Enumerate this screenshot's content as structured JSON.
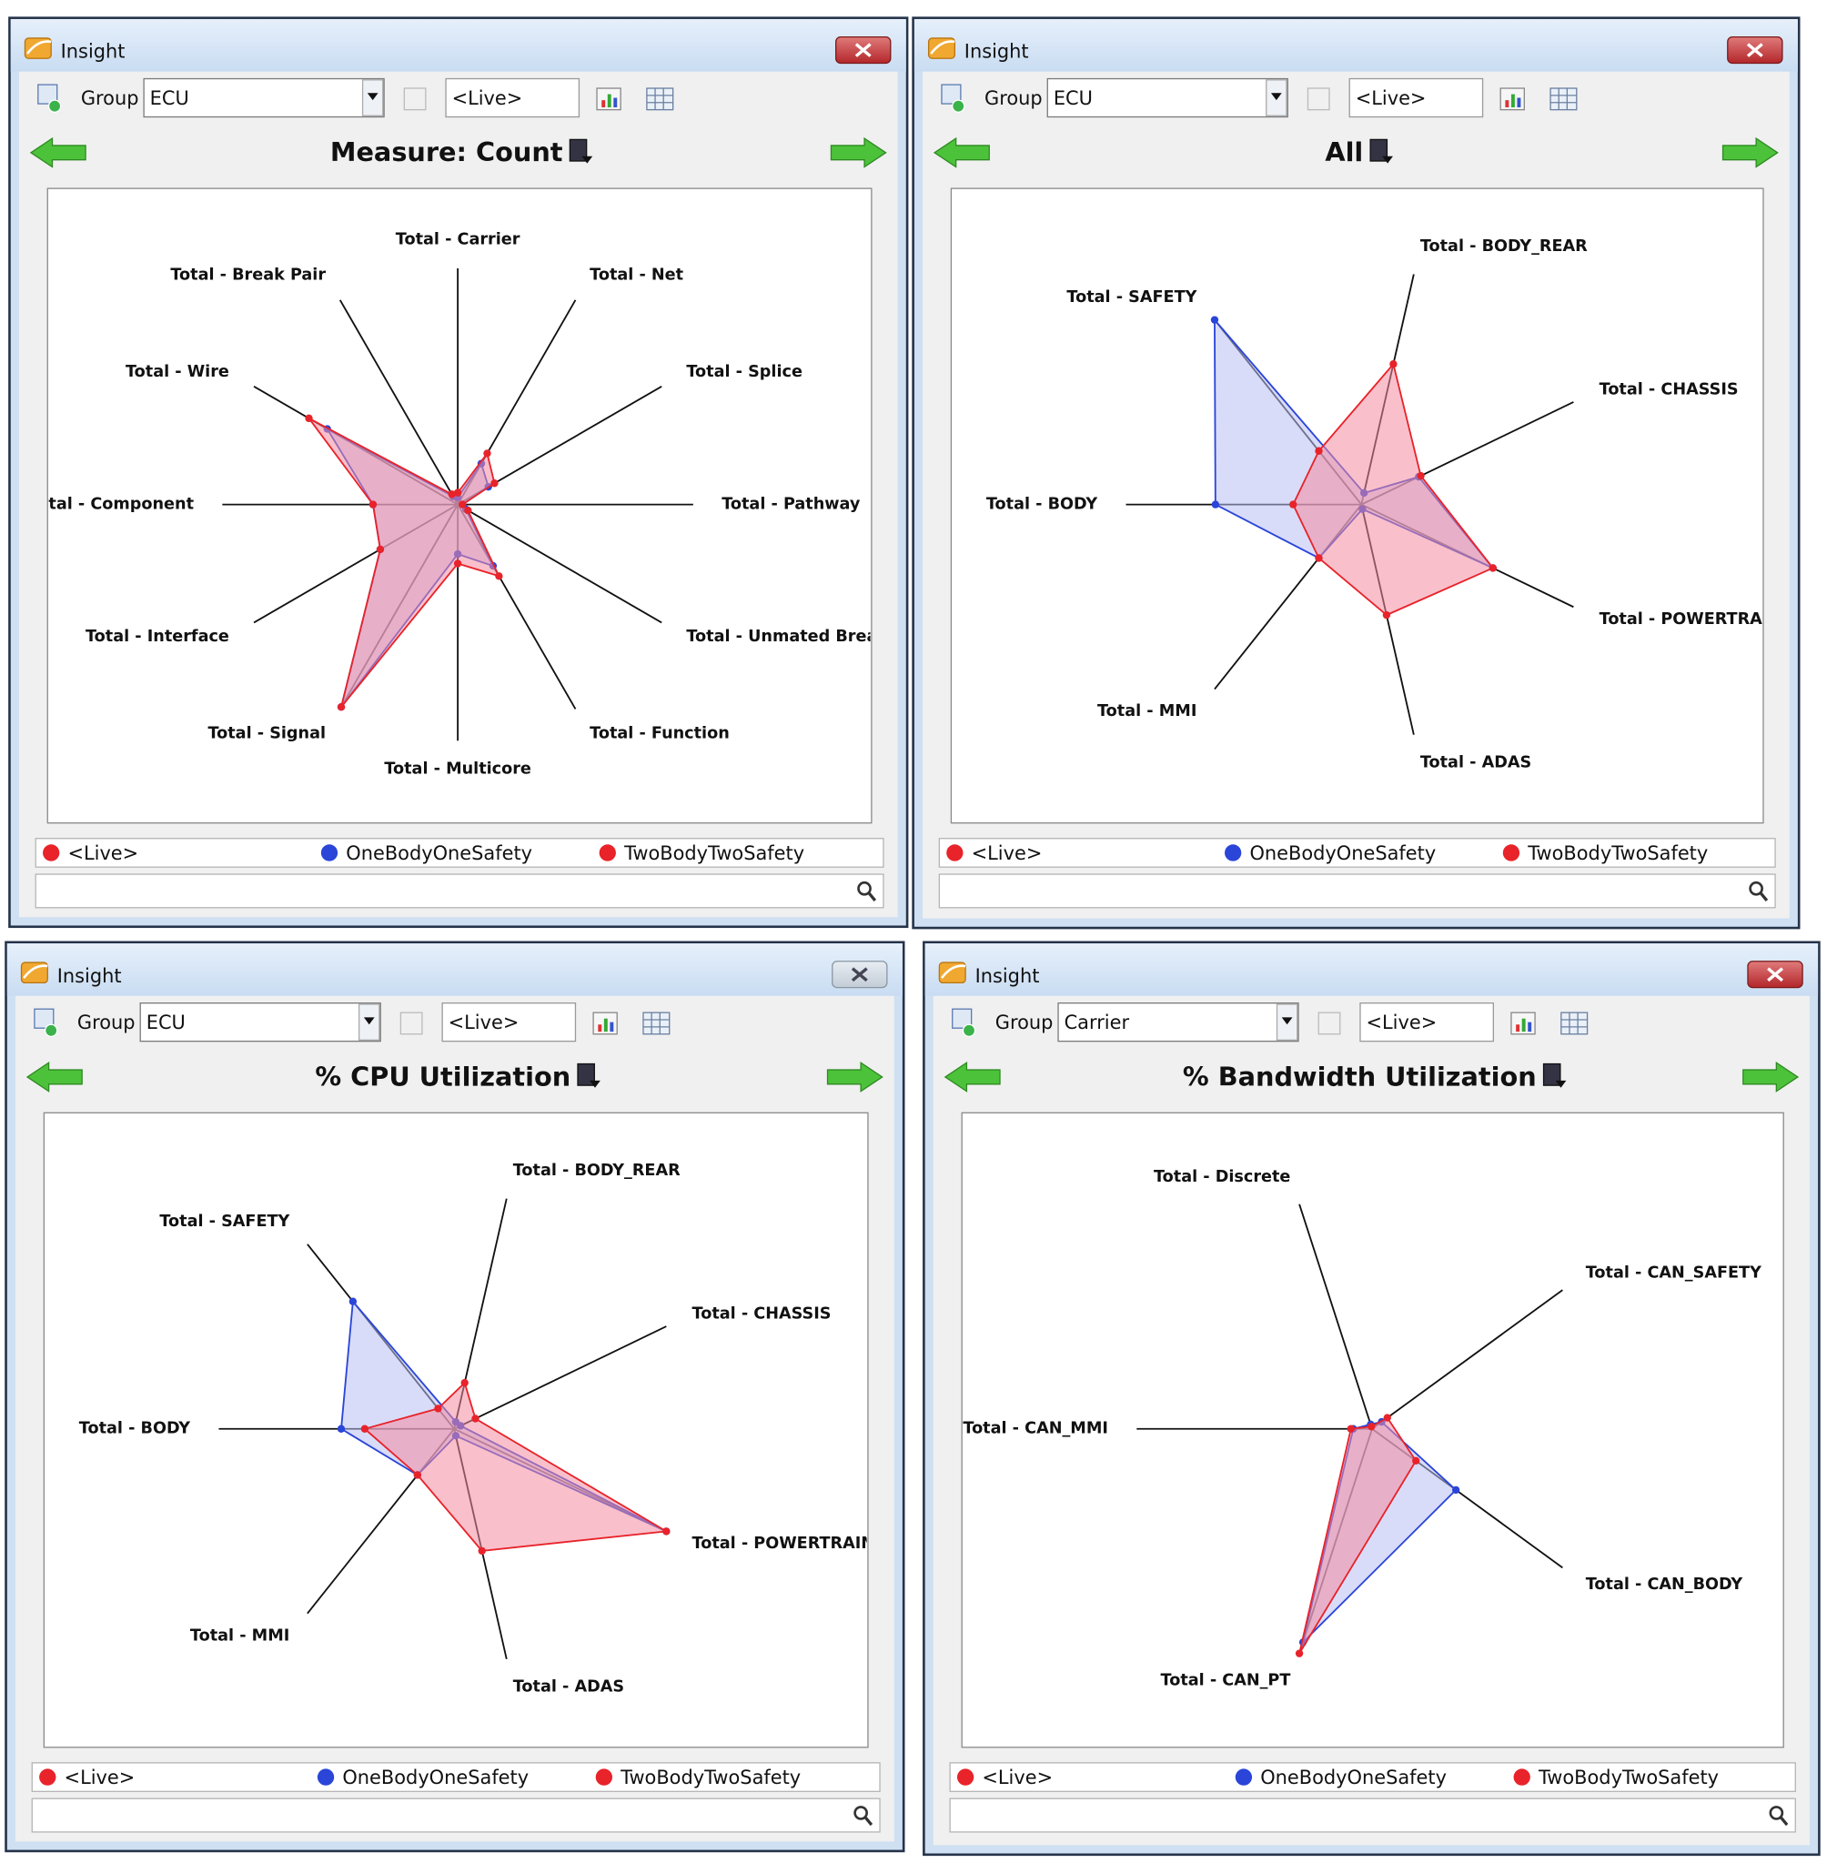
{
  "windows": [
    {
      "title": "Insight",
      "group_label": "Group",
      "group_value": "ECU",
      "live_field": "<Live>",
      "chart_data": {
        "type": "radar",
        "title": "Measure: Count",
        "rlim": [
          0,
          100
        ],
        "axes": [
          "Total - Carrier",
          "Total - Net",
          "Total - Splice",
          "Total - Pathway",
          "Total - Unmated Brea",
          "Total - Function",
          "Total - Multicore",
          "Total - Signal",
          "Total - Interface",
          "otal - Component",
          "Total - Wire",
          "Total - Break Pair"
        ],
        "series": [
          {
            "name": "<Live>",
            "color": "#e8232a",
            "values": [
              null,
              null,
              null,
              null,
              null,
              null,
              null,
              null,
              null,
              null,
              null,
              null
            ]
          },
          {
            "name": "OneBodyOneSafety",
            "color": "#2a45d8",
            "values": [
              3,
              20,
              15,
              2,
              4,
              30,
              21,
              99,
              38,
              36,
              64,
              4
            ]
          },
          {
            "name": "TwoBodyTwoSafety",
            "color": "#e8232a",
            "values": [
              5,
              25,
              18,
              2,
              5,
              35,
              25,
              99,
              38,
              36,
              73,
              5
            ]
          }
        ]
      }
    },
    {
      "title": "Insight",
      "group_label": "Group",
      "group_value": "ECU",
      "live_field": "<Live>",
      "chart_data": {
        "type": "radar",
        "title": "All",
        "rlim": [
          0,
          100
        ],
        "axes": [
          "Total - BODY_REAR",
          "Total - CHASSIS",
          "Total - POWERTRAIN",
          "Total - ADAS",
          "Total - MMI",
          "Total - BODY",
          "Total - SAFETY"
        ],
        "series": [
          {
            "name": "<Live>",
            "color": "#e8232a",
            "values": [
              null,
              null,
              null,
              null,
              null,
              null,
              null
            ]
          },
          {
            "name": "OneBodyOneSafety",
            "color": "#2a45d8",
            "values": [
              5,
              27,
              62,
              2,
              29,
              62,
              100
            ]
          },
          {
            "name": "TwoBodyTwoSafety",
            "color": "#e8232a",
            "values": [
              61,
              28,
              62,
              48,
              29,
              29,
              29
            ]
          }
        ]
      }
    },
    {
      "title": "Insight",
      "group_label": "Group",
      "group_value": "ECU",
      "live_field": "<Live>",
      "chart_data": {
        "type": "radar",
        "title": "% CPU Utilization",
        "rlim": [
          0,
          100
        ],
        "axes": [
          "Total - BODY_REAR",
          "Total - CHASSIS",
          "Total - POWERTRAIN",
          "Total - ADAS",
          "Total - MMI",
          "Total - BODY",
          "Total - SAFETY"
        ],
        "series": [
          {
            "name": "<Live>",
            "color": "#e8232a",
            "values": [
              null,
              null,
              null,
              null,
              null,
              null,
              null
            ]
          },
          {
            "name": "OneBodyOneSafety",
            "color": "#2a45d8",
            "values": [
              3,
              3,
              100,
              3,
              25,
              48,
              69
            ]
          },
          {
            "name": "TwoBodyTwoSafety",
            "color": "#e8232a",
            "values": [
              20,
              10,
              100,
              53,
              25,
              38,
              11
            ]
          }
        ]
      }
    },
    {
      "title": "Insight",
      "group_label": "Group",
      "group_value": "Carrier",
      "live_field": "<Live>",
      "chart_data": {
        "type": "radar",
        "title": "% Bandwidth Utilization",
        "rlim": [
          0,
          100
        ],
        "axes": [
          "Total - Discrete",
          "Total - CAN_SAFETY",
          "Total - CAN_BODY",
          "Total - CAN_PT",
          "Total - CAN_MMI"
        ],
        "series": [
          {
            "name": "<Live>",
            "color": "#e8232a",
            "values": [
              null,
              null,
              null,
              null,
              null
            ]
          },
          {
            "name": "OneBodyOneSafety",
            "color": "#2a45d8",
            "values": [
              2,
              5,
              44,
              95,
              8
            ]
          },
          {
            "name": "TwoBodyTwoSafety",
            "color": "#e8232a",
            "values": [
              1,
              8,
              23,
              100,
              9
            ]
          }
        ]
      }
    }
  ]
}
